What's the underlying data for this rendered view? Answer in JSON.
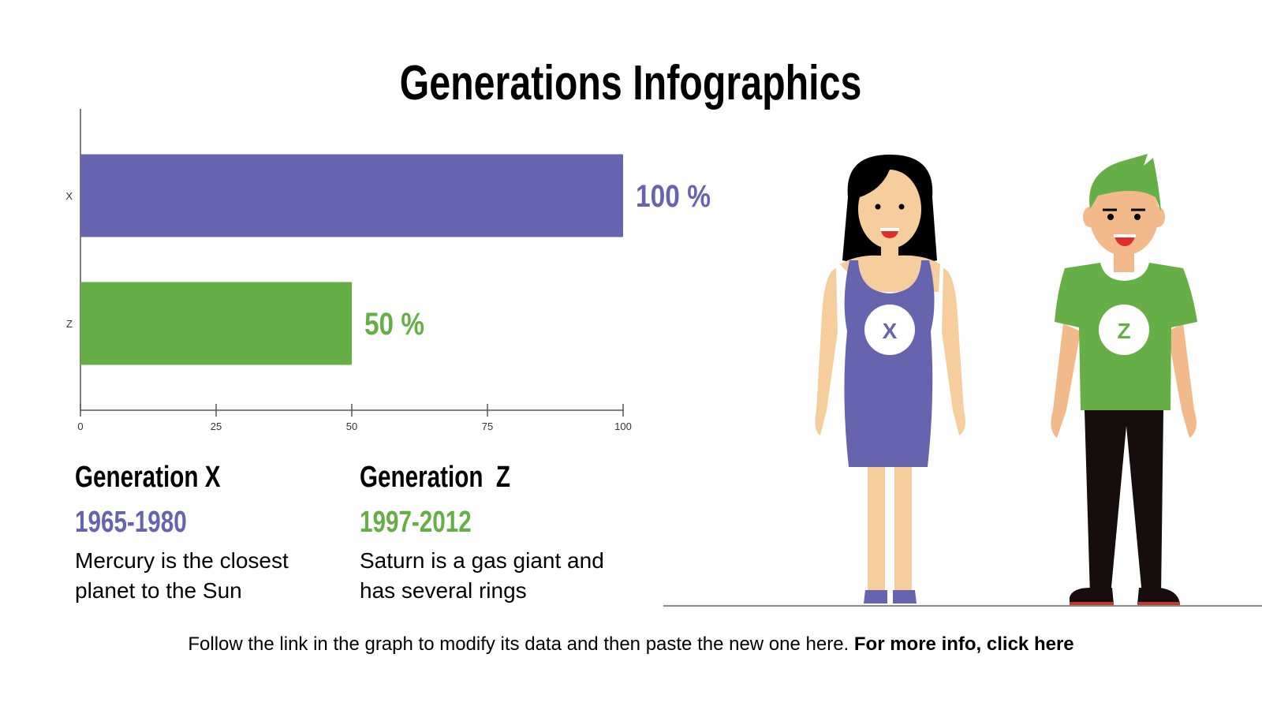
{
  "title": "Generations Infographics",
  "chart_data": {
    "type": "bar",
    "orientation": "horizontal",
    "categories": [
      "X",
      "Z"
    ],
    "values": [
      100,
      50
    ],
    "data_labels": [
      "100 %",
      "50 %"
    ],
    "colors": [
      "#6764AF",
      "#66AF47"
    ],
    "xlim": [
      0,
      100
    ],
    "xticks": [
      "0",
      "25",
      "50",
      "75",
      "100"
    ],
    "grid": false
  },
  "generations": [
    {
      "name": "Generation X",
      "years": "1965-1980",
      "description": "Mercury is the closest planet to the Sun",
      "color": "#6764AF",
      "badge": "X"
    },
    {
      "name": "Generation  Z",
      "years": "1997-2012",
      "description": "Saturn is a gas giant and has several rings",
      "color": "#66AF47",
      "badge": "Z"
    }
  ],
  "footer": {
    "text": "Follow the link in the graph to modify its data and then paste the new one here. ",
    "link": "For more info, click here"
  }
}
